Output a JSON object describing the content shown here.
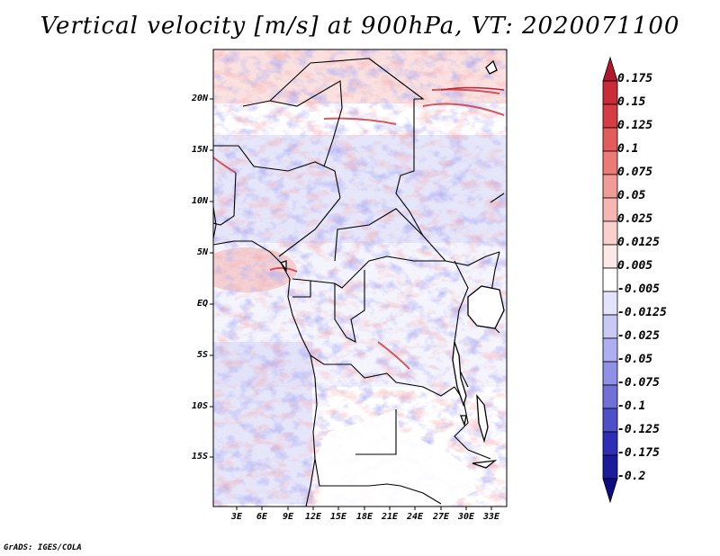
{
  "title": "Vertical velocity [m/s] at 900hPa, VT: 2020071100",
  "y_axis_labels": [
    "20N",
    "15N",
    "10N",
    "5N",
    "EQ",
    "5S",
    "10S",
    "15S"
  ],
  "x_axis_labels": [
    "3E",
    "6E",
    "9E",
    "12E",
    "15E",
    "18E",
    "21E",
    "24E",
    "27E",
    "30E",
    "33E"
  ],
  "colorbar": {
    "labels": [
      "0.175",
      "0.15",
      "0.125",
      "0.1",
      "0.075",
      "0.05",
      "0.025",
      "0.0125",
      "0.005",
      "-0.005",
      "-0.0125",
      "-0.025",
      "-0.05",
      "-0.075",
      "-0.1",
      "-0.125",
      "-0.175",
      "-0.2"
    ],
    "colors": [
      "#b2182b",
      "#c92b38",
      "#d73c45",
      "#e45b5b",
      "#ed7a77",
      "#f29c98",
      "#f6b7b3",
      "#f9d0cd",
      "#fce8e6",
      "#ffffff",
      "#e3e3fb",
      "#c9c9f6",
      "#aeaef0",
      "#9090e6",
      "#7070d9",
      "#4f4fc8",
      "#2f2fb5",
      "#1b1b9e",
      "#0d0d80"
    ]
  },
  "footer": "GrADS: IGES/COLA"
}
